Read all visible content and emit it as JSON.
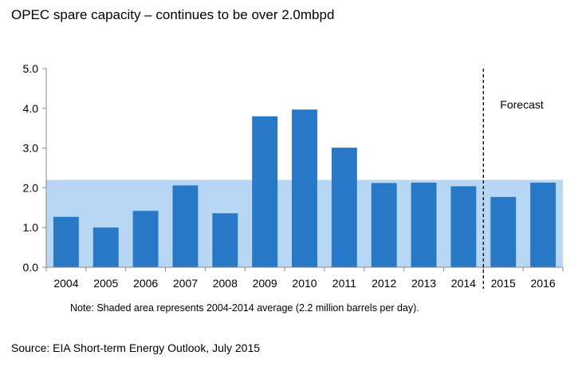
{
  "title": "OPEC spare capacity – continues to be over 2.0mbpd",
  "note": "Note: Shaded area represents 2004-2014 average (2.2 million barrels per day).",
  "source": "Source: EIA Short-term Energy Outlook, July 2015",
  "chart_data": {
    "type": "bar",
    "title": "OPEC spare capacity – continues to be over 2.0mbpd",
    "xlabel": "",
    "ylabel": "",
    "categories": [
      "2004",
      "2005",
      "2006",
      "2007",
      "2008",
      "2009",
      "2010",
      "2011",
      "2012",
      "2013",
      "2014",
      "2015",
      "2016"
    ],
    "values": [
      1.27,
      1.0,
      1.42,
      2.06,
      1.36,
      3.8,
      3.97,
      3.01,
      2.12,
      2.13,
      2.04,
      1.77,
      2.13
    ],
    "ylim": [
      0,
      5
    ],
    "yticks": [
      "0.0",
      "1.0",
      "2.0",
      "3.0",
      "4.0",
      "5.0"
    ],
    "shaded_average": 2.2,
    "forecast_divider_after": "2014",
    "forecast_label": "Forecast",
    "colors": {
      "bar": "#2878c8",
      "shade": "#b7d7f5",
      "axis": "#888888"
    }
  }
}
